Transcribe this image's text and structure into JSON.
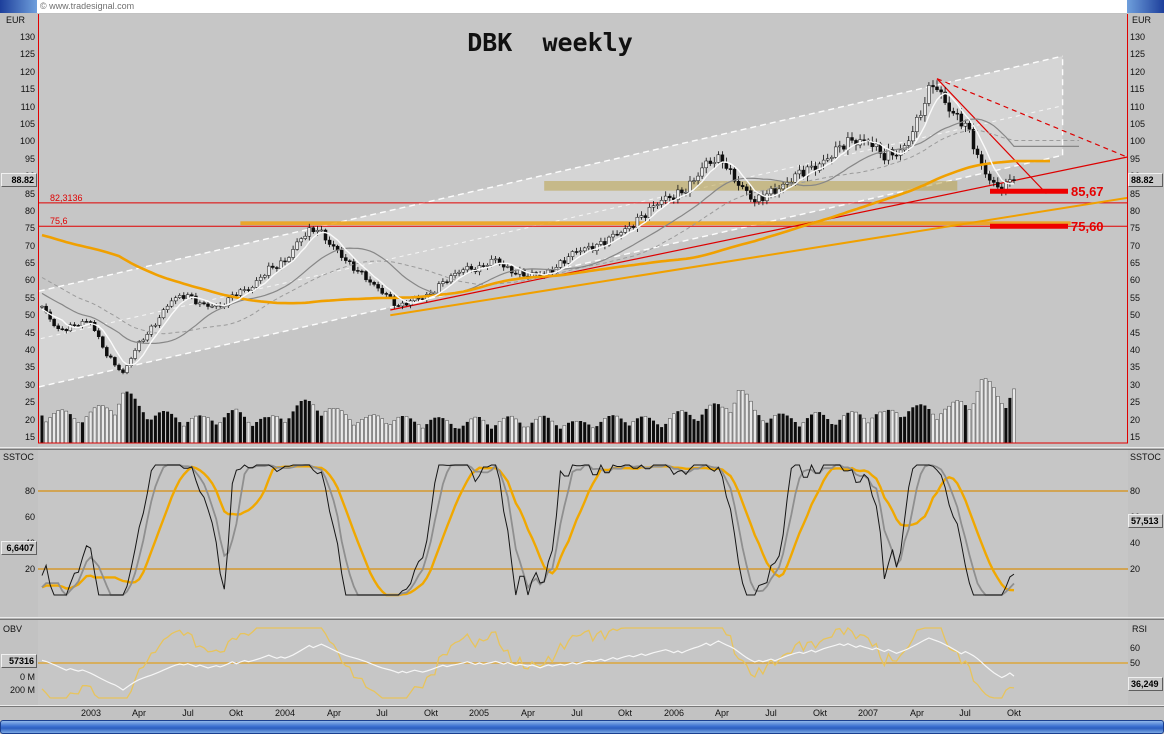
{
  "window": {
    "copyright": "© www.tradesignal.com",
    "title": "DBK  weekly"
  },
  "colors": {
    "accent_red": "#e60000",
    "accent_orange": "#f0a000",
    "scrollbar_blue": "#3a6fd0",
    "background_gray": "#c2c2c2"
  },
  "price_panel": {
    "axis_label": "EUR",
    "ticks": [
      130,
      125,
      120,
      115,
      110,
      105,
      100,
      95,
      90,
      85,
      80,
      75,
      70,
      65,
      60,
      55,
      50,
      45,
      40,
      35,
      30,
      25,
      20,
      15
    ],
    "last_price_label": "88.82"
  },
  "sstoc_panel": {
    "left_label": "SSTOC",
    "right_label": "SSTOC",
    "ticks": [
      80,
      60,
      40,
      20
    ],
    "left_value_label": "6,6407",
    "right_value_label": "57,513"
  },
  "obv_panel": {
    "left_label": "OBV",
    "right_label": "RSI",
    "left_ticks": [
      "0 M",
      "200 M"
    ],
    "right_ticks": [
      "60",
      "50"
    ],
    "left_value_label": "57316",
    "right_value_label": "36,249"
  },
  "time_axis": {
    "labels": [
      {
        "text": "2003",
        "month": 3
      },
      {
        "text": "Apr",
        "month": 6
      },
      {
        "text": "Jul",
        "month": 9
      },
      {
        "text": "Okt",
        "month": 12
      },
      {
        "text": "2004",
        "month": 15
      },
      {
        "text": "Apr",
        "month": 18
      },
      {
        "text": "Jul",
        "month": 21
      },
      {
        "text": "Okt",
        "month": 24
      },
      {
        "text": "2005",
        "month": 27
      },
      {
        "text": "Apr",
        "month": 30
      },
      {
        "text": "Jul",
        "month": 33
      },
      {
        "text": "Okt",
        "month": 36
      },
      {
        "text": "2006",
        "month": 39
      },
      {
        "text": "Apr",
        "month": 42
      },
      {
        "text": "Jul",
        "month": 45
      },
      {
        "text": "Okt",
        "month": 48
      },
      {
        "text": "2007",
        "month": 51
      },
      {
        "text": "Apr",
        "month": 54
      },
      {
        "text": "Jul",
        "month": 57
      },
      {
        "text": "Okt",
        "month": 60
      }
    ]
  },
  "chart_data": {
    "type": "candlestick",
    "title": "DBK weekly",
    "timeframe": "weekly",
    "x_start": "Okt 2002",
    "x_end": "Okt 2007",
    "price_axis": {
      "unit": "EUR",
      "min": 15,
      "max": 130,
      "tick_step": 5
    },
    "last_close": 88.82,
    "price_monthly_closes": [
      52,
      46,
      47,
      48,
      39,
      33,
      42,
      48,
      54,
      56,
      53,
      52,
      57,
      58,
      63,
      66,
      72,
      75,
      70,
      64,
      61,
      57,
      52,
      55,
      56,
      60,
      64,
      63,
      66,
      63,
      61,
      62,
      65,
      68,
      70,
      72,
      74,
      79,
      82,
      84,
      88,
      93,
      95,
      88,
      82,
      86,
      88,
      91,
      94,
      97,
      100,
      101,
      95,
      97,
      106,
      116,
      110,
      105,
      92,
      87,
      88.82
    ],
    "volume_monthly_rel": [
      0.55,
      0.5,
      0.45,
      0.5,
      0.6,
      0.85,
      0.6,
      0.5,
      0.45,
      0.42,
      0.4,
      0.45,
      0.5,
      0.42,
      0.38,
      0.5,
      0.62,
      0.7,
      0.52,
      0.46,
      0.4,
      0.44,
      0.42,
      0.36,
      0.4,
      0.36,
      0.32,
      0.4,
      0.36,
      0.4,
      0.36,
      0.4,
      0.36,
      0.32,
      0.36,
      0.4,
      0.44,
      0.4,
      0.36,
      0.46,
      0.5,
      0.56,
      0.6,
      0.92,
      0.52,
      0.46,
      0.42,
      0.42,
      0.46,
      0.42,
      0.46,
      0.52,
      0.46,
      0.6,
      0.56,
      0.6,
      0.56,
      0.72,
      1.0,
      0.82,
      0.9
    ],
    "horizontal_lines": [
      {
        "value": 82.3136,
        "label": "82,3136",
        "color": "#e00000"
      },
      {
        "value": 75.6,
        "label": "75,6",
        "color": "#e00000"
      }
    ],
    "right_price_markers": [
      {
        "value": 85.67,
        "label": "85,67"
      },
      {
        "value": 75.6,
        "label": "75,60"
      }
    ],
    "trend_channel": {
      "lower": [
        [
          -8,
          27.5
        ],
        [
          252,
          96
        ]
      ],
      "upper": [
        [
          -8,
          55
        ],
        [
          252,
          124.5
        ]
      ]
    },
    "trend_lines": [
      {
        "name": "red-rising-support",
        "color": "#dd0000",
        "dash": false,
        "width": 1.2,
        "from": [
          86,
          51.5
        ],
        "to": [
          268,
          95.5
        ]
      },
      {
        "name": "orange-rising-support",
        "color": "#f0a000",
        "dash": false,
        "width": 2,
        "from": [
          86,
          50
        ],
        "to": [
          272,
          84.5
        ]
      },
      {
        "name": "red-decline-steep",
        "color": "#dd0000",
        "dash": false,
        "width": 1.2,
        "from": [
          221,
          118
        ],
        "to": [
          248,
          85
        ]
      },
      {
        "name": "red-decline-dashed",
        "color": "#dd0000",
        "dash": true,
        "width": 1.2,
        "from": [
          221,
          118
        ],
        "to": [
          270,
          94.5
        ]
      }
    ],
    "bands": [
      {
        "name": "khaki-resistance-zone",
        "v1": 85.8,
        "v2": 88.6,
        "w1": 124,
        "w2": 226,
        "color": "rgba(185,162,74,0.55)"
      },
      {
        "name": "orange-support-band",
        "v1": 75.9,
        "v2": 77.0,
        "w1": 49,
        "w2": 254,
        "color": "rgba(240,160,16,0.85)"
      }
    ],
    "moving_averages": [
      {
        "name": "long-ma",
        "color": "#f0a000"
      },
      {
        "name": "mid-ma",
        "color": "#878787"
      },
      {
        "name": "mid-ma-dashed",
        "color": "#9b9b9b"
      },
      {
        "name": "fast-ma",
        "color": "#fafafa"
      }
    ],
    "indicators": {
      "sstoc": {
        "name": "SSTOC",
        "hlines": [
          80,
          20
        ],
        "last_left": "6,6407",
        "last_right": "57,513"
      },
      "obv": {
        "name": "OBV",
        "last": "57316"
      },
      "rsi": {
        "name": "RSI",
        "midline": 50,
        "last": 36.249
      }
    }
  }
}
